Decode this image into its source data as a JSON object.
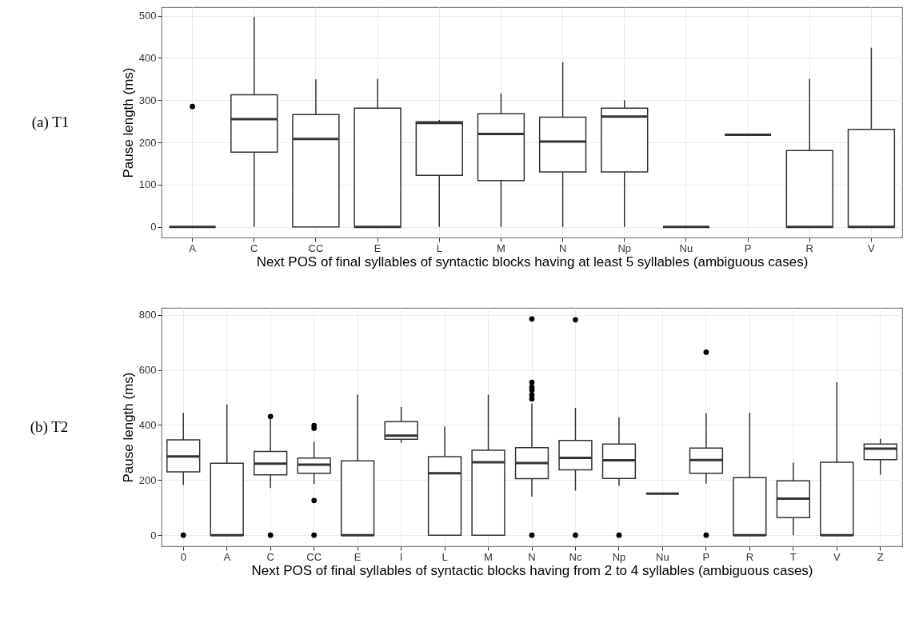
{
  "chart_data": [
    {
      "type": "box",
      "title": "(a) T1",
      "xlabel": "Next POS of final syllables of syntactic blocks having at least 5 syllables (ambiguous cases)",
      "ylabel": "Pause length (ms)",
      "grid": true,
      "ylim": [
        -25,
        520
      ],
      "yticks": [
        0,
        100,
        200,
        300,
        400,
        500
      ],
      "categories": [
        "A",
        "C",
        "CC",
        "E",
        "L",
        "M",
        "N",
        "Np",
        "Nu",
        "P",
        "R",
        "V"
      ],
      "boxes": [
        {
          "low": 0,
          "q1": 0,
          "median": 0,
          "q3": 0,
          "high": 0,
          "outliers": [
            285
          ]
        },
        {
          "low": 0,
          "q1": 177,
          "median": 255,
          "q3": 313,
          "high": 497
        },
        {
          "low": 0,
          "q1": 0,
          "median": 208,
          "q3": 266,
          "high": 349
        },
        {
          "low": 0,
          "q1": 0,
          "median": 0,
          "q3": 281,
          "high": 350
        },
        {
          "low": 0,
          "q1": 122,
          "median": 246,
          "q3": 249,
          "high": 253
        },
        {
          "low": 0,
          "q1": 110,
          "median": 220,
          "q3": 268,
          "high": 316
        },
        {
          "low": 0,
          "q1": 130,
          "median": 202,
          "q3": 260,
          "high": 390
        },
        {
          "low": 0,
          "q1": 130,
          "median": 261,
          "q3": 281,
          "high": 300
        },
        {
          "low": 0,
          "q1": 0,
          "median": 0,
          "q3": 0,
          "high": 0
        },
        {
          "low": 218,
          "q1": 218,
          "median": 218,
          "q3": 218,
          "high": 218
        },
        {
          "low": 0,
          "q1": 0,
          "median": 0,
          "q3": 181,
          "high": 350
        },
        {
          "low": 0,
          "q1": 0,
          "median": 0,
          "q3": 231,
          "high": 424
        }
      ]
    },
    {
      "type": "box",
      "title": "(b) T2",
      "xlabel": "Next POS of final syllables of syntactic blocks having from 2 to 4 syllables (ambiguous cases)",
      "ylabel": "Pause length (ms)",
      "grid": true,
      "ylim": [
        -40,
        825
      ],
      "yticks": [
        0,
        200,
        400,
        600,
        800
      ],
      "categories": [
        "0",
        "A",
        "C",
        "CC",
        "E",
        "I",
        "L",
        "M",
        "N",
        "Nc",
        "Np",
        "Nu",
        "P",
        "R",
        "T",
        "V",
        "Z"
      ],
      "boxes": [
        {
          "low": 182,
          "q1": 230,
          "median": 286,
          "q3": 346,
          "high": 444,
          "outliers": [
            0
          ]
        },
        {
          "low": 0,
          "q1": 0,
          "median": 0,
          "q3": 261,
          "high": 475
        },
        {
          "low": 171,
          "q1": 219,
          "median": 260,
          "q3": 304,
          "high": 423,
          "outliers": [
            0,
            431
          ]
        },
        {
          "low": 186,
          "q1": 225,
          "median": 256,
          "q3": 280,
          "high": 339,
          "outliers": [
            0,
            126,
            388,
            398
          ]
        },
        {
          "low": 0,
          "q1": 0,
          "median": 0,
          "q3": 270,
          "high": 510
        },
        {
          "low": 335,
          "q1": 348,
          "median": 361,
          "q3": 412,
          "high": 465
        },
        {
          "low": 0,
          "q1": 0,
          "median": 225,
          "q3": 285,
          "high": 395
        },
        {
          "low": 0,
          "q1": 0,
          "median": 265,
          "q3": 308,
          "high": 510
        },
        {
          "low": 140,
          "q1": 205,
          "median": 262,
          "q3": 318,
          "high": 478,
          "outliers": [
            0,
            495,
            510,
            527,
            538,
            555,
            785
          ]
        },
        {
          "low": 162,
          "q1": 237,
          "median": 281,
          "q3": 344,
          "high": 462,
          "outliers": [
            0,
            782
          ]
        },
        {
          "low": 179,
          "q1": 206,
          "median": 272,
          "q3": 331,
          "high": 428,
          "outliers": [
            0
          ]
        },
        {
          "low": 151,
          "q1": 151,
          "median": 151,
          "q3": 151,
          "high": 151
        },
        {
          "low": 187,
          "q1": 225,
          "median": 273,
          "q3": 316,
          "high": 443,
          "outliers": [
            0,
            664
          ]
        },
        {
          "low": 0,
          "q1": 0,
          "median": 0,
          "q3": 209,
          "high": 444
        },
        {
          "low": 0,
          "q1": 64,
          "median": 133,
          "q3": 197,
          "high": 263
        },
        {
          "low": 0,
          "q1": 0,
          "median": 0,
          "q3": 265,
          "high": 555
        },
        {
          "low": 220,
          "q1": 274,
          "median": 314,
          "q3": 331,
          "high": 350
        }
      ]
    }
  ]
}
